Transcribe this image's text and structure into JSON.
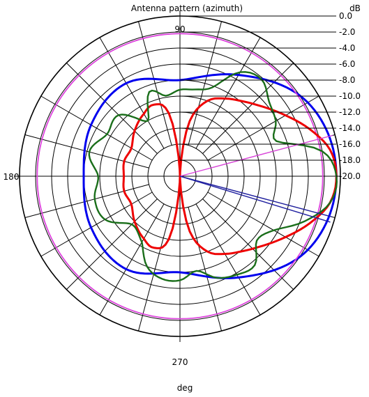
{
  "chart_data": {
    "type": "polar",
    "title": "Antenna pattern (azimuth)",
    "unit_label": "dB",
    "xlabel": "deg",
    "angle_labels": [
      "90",
      "180",
      "270"
    ],
    "radial_range_db": [
      -20,
      0
    ],
    "radial_tick_labels": [
      "0.0",
      "-2.0",
      "-4.0",
      "-6.0",
      "-8.0",
      "-10.0",
      "-12.0",
      "-14.0",
      "-16.0",
      "-18.0",
      "-20.0"
    ],
    "grid": true,
    "angle_grid_step_deg": 15,
    "colors": {
      "blue": "#0000ee",
      "red": "#ee0000",
      "green": "#1a6e1a",
      "magenta": "#dd44dd",
      "navy": "#2020a0",
      "grid": "#000000"
    },
    "series": [
      {
        "color": "blue",
        "angles_deg": [
          0,
          30,
          60,
          90,
          120,
          150,
          180,
          210,
          240,
          270,
          300,
          330
        ],
        "db": [
          -0.5,
          -1.6,
          -5.4,
          -8.0,
          -6.6,
          -7.2,
          -8.0,
          -7.2,
          -6.6,
          -8.0,
          -5.4,
          -1.6
        ]
      },
      {
        "color": "magenta",
        "angles_deg": [
          0,
          90,
          180,
          270
        ],
        "db": [
          -2.2,
          -2.2,
          -2.2,
          -2.2
        ]
      },
      {
        "color": "red",
        "angles_deg": [
          0,
          10,
          20,
          30,
          40,
          50,
          60,
          70,
          80,
          90,
          100,
          110,
          120,
          135,
          150,
          165,
          180,
          195,
          210,
          225,
          240,
          250,
          260,
          270,
          280,
          290,
          300,
          310,
          320,
          330,
          340,
          350
        ],
        "db": [
          -0.5,
          -1.0,
          -2.8,
          -4.8,
          -6.5,
          -7.8,
          -8.8,
          -10.0,
          -13.0,
          -20.0,
          -12.0,
          -10.5,
          -11.0,
          -12.0,
          -13.0,
          -12.8,
          -13.0,
          -12.8,
          -13.0,
          -12.0,
          -11.0,
          -10.5,
          -12.0,
          -20.0,
          -13.0,
          -10.0,
          -8.8,
          -7.8,
          -6.5,
          -4.8,
          -2.8,
          -1.0
        ]
      },
      {
        "color": "green",
        "angles_deg": [
          0,
          10,
          20,
          30,
          40,
          50,
          60,
          70,
          80,
          90,
          100,
          110,
          120,
          135,
          150,
          165,
          180,
          195,
          210,
          225,
          240,
          250,
          260,
          270,
          280,
          290,
          300,
          310,
          320,
          330,
          340,
          350
        ],
        "db": [
          -0.5,
          -2.0,
          -7.2,
          -6.2,
          -5.5,
          -4.2,
          -5.0,
          -8.2,
          -9.0,
          -9.2,
          -9.8,
          -8.8,
          -12.0,
          -9.2,
          -9.5,
          -8.3,
          -9.8,
          -9.0,
          -9.2,
          -11.5,
          -10.5,
          -8.0,
          -7.0,
          -7.0,
          -8.0,
          -6.5,
          -5.8,
          -5.5,
          -7.5,
          -6.5,
          -3.5,
          -1.0
        ]
      }
    ],
    "reference_lines": [
      {
        "color": "magenta",
        "angle_deg": 15,
        "db": -0.3
      },
      {
        "color": "navy",
        "angle_deg": -15,
        "db": -0.4
      },
      {
        "color": "navy",
        "angle_deg": -17,
        "db": -0.4
      }
    ]
  }
}
